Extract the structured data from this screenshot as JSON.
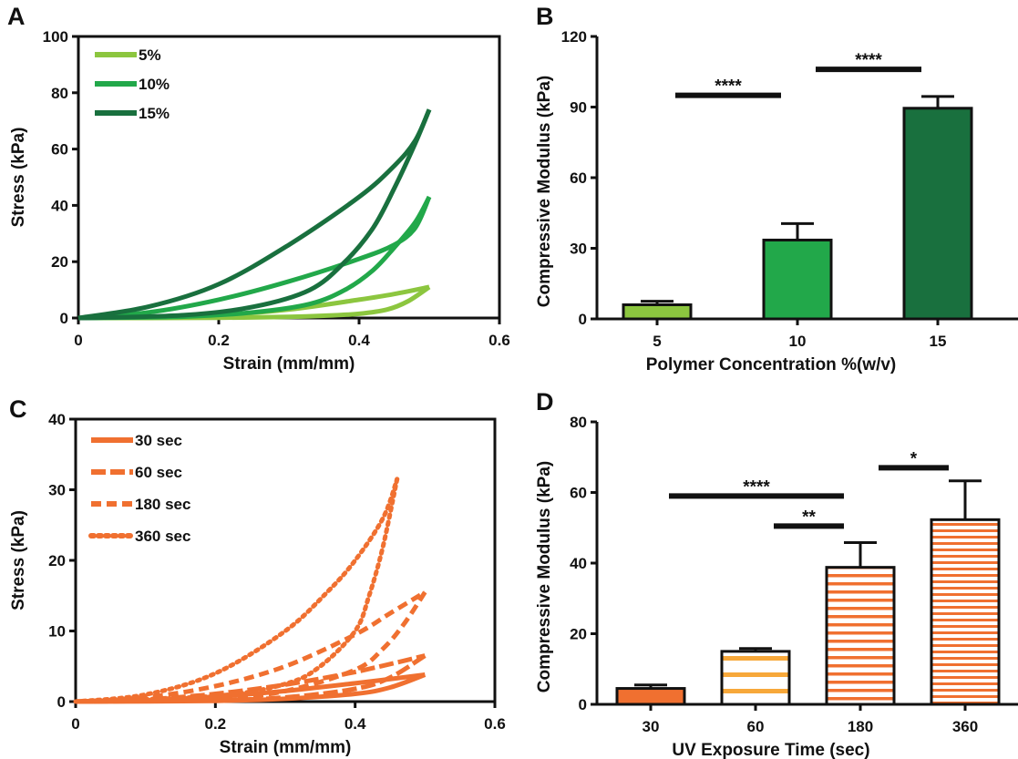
{
  "colors": {
    "green_5": "#8cc63f",
    "green_10": "#22a84a",
    "green_15": "#19703e",
    "orange": "#f07030",
    "orange_stripe": "#f7a83a",
    "axis": "#111111"
  },
  "chart_data": [
    {
      "panel": "A",
      "type": "line",
      "xlabel": "Strain (mm/mm)",
      "ylabel": "Stress (kPa)",
      "xlim": [
        0,
        0.6
      ],
      "ylim": [
        0,
        100
      ],
      "xticks": [
        "0",
        "0.2",
        "0.4",
        "0.6"
      ],
      "yticks": [
        "0",
        "20",
        "40",
        "60",
        "80",
        "100"
      ],
      "legend_position": "top-left",
      "series": [
        {
          "name": "5%",
          "color": "#8cc63f",
          "style": "solid",
          "peak_x": 0.5,
          "peak_y": 11,
          "loading": [
            [
              0,
              0
            ],
            [
              0.1,
              0.3
            ],
            [
              0.2,
              1
            ],
            [
              0.3,
              3
            ],
            [
              0.4,
              6.5
            ],
            [
              0.45,
              8.5
            ],
            [
              0.5,
              11
            ]
          ],
          "unloading": [
            [
              0.5,
              11
            ],
            [
              0.47,
              6
            ],
            [
              0.44,
              3
            ],
            [
              0.4,
              1.5
            ],
            [
              0.35,
              0.8
            ],
            [
              0.3,
              0.4
            ],
            [
              0.2,
              0.1
            ],
            [
              0.1,
              0
            ],
            [
              0,
              0
            ]
          ]
        },
        {
          "name": "10%",
          "color": "#22a84a",
          "style": "solid",
          "peak_x": 0.5,
          "peak_y": 43,
          "loading": [
            [
              0,
              0
            ],
            [
              0.1,
              2
            ],
            [
              0.2,
              6.5
            ],
            [
              0.3,
              13
            ],
            [
              0.4,
              21
            ],
            [
              0.45,
              26
            ],
            [
              0.48,
              32
            ],
            [
              0.5,
              43
            ]
          ],
          "unloading": [
            [
              0.5,
              43
            ],
            [
              0.48,
              34
            ],
            [
              0.45,
              25
            ],
            [
              0.42,
              17
            ],
            [
              0.38,
              10
            ],
            [
              0.33,
              5
            ],
            [
              0.25,
              2
            ],
            [
              0.15,
              0.5
            ],
            [
              0,
              0
            ]
          ]
        },
        {
          "name": "15%",
          "color": "#19703e",
          "style": "solid",
          "peak_x": 0.5,
          "peak_y": 74,
          "loading": [
            [
              0,
              0
            ],
            [
              0.1,
              4
            ],
            [
              0.2,
              12
            ],
            [
              0.3,
              26
            ],
            [
              0.4,
              43
            ],
            [
              0.45,
              54
            ],
            [
              0.48,
              63
            ],
            [
              0.5,
              74
            ]
          ],
          "unloading": [
            [
              0.5,
              74
            ],
            [
              0.48,
              62
            ],
            [
              0.45,
              46
            ],
            [
              0.42,
              32
            ],
            [
              0.38,
              20
            ],
            [
              0.33,
              10
            ],
            [
              0.25,
              4
            ],
            [
              0.15,
              1
            ],
            [
              0,
              0
            ]
          ]
        }
      ]
    },
    {
      "panel": "B",
      "type": "bar",
      "xlabel": "Polymer Concentration %(w/v)",
      "ylabel": "Compressive  Modulus (kPa)",
      "categories": [
        "5",
        "10",
        "15"
      ],
      "values": [
        6,
        33.5,
        89.5
      ],
      "errors": [
        1.5,
        7,
        5
      ],
      "colors": [
        "#8cc63f",
        "#22a84a",
        "#19703e"
      ],
      "ylim": [
        0,
        120
      ],
      "yticks": [
        "0",
        "30",
        "60",
        "90",
        "120"
      ],
      "significance": [
        {
          "from": 0,
          "to": 1,
          "label": "****",
          "y": 95
        },
        {
          "from": 1,
          "to": 2,
          "label": "****",
          "y": 106
        }
      ]
    },
    {
      "panel": "C",
      "type": "line",
      "xlabel": "Strain (mm/mm)",
      "ylabel": "Stress (kPa)",
      "xlim": [
        0,
        0.6
      ],
      "ylim": [
        0,
        40
      ],
      "xticks": [
        "0",
        "0.2",
        "0.4",
        "0.6"
      ],
      "yticks": [
        "0",
        "10",
        "20",
        "30",
        "40"
      ],
      "legend_position": "top-left",
      "series": [
        {
          "name": "30 sec",
          "color": "#f07030",
          "style": "solid",
          "peak_x": 0.5,
          "peak_y": 3.8,
          "loading": [
            [
              0,
              0
            ],
            [
              0.1,
              0.2
            ],
            [
              0.2,
              0.7
            ],
            [
              0.3,
              1.5
            ],
            [
              0.4,
              2.6
            ],
            [
              0.5,
              3.8
            ]
          ],
          "unloading": [
            [
              0.5,
              3.8
            ],
            [
              0.45,
              2
            ],
            [
              0.4,
              1.1
            ],
            [
              0.3,
              0.4
            ],
            [
              0.2,
              0.1
            ],
            [
              0,
              0
            ]
          ]
        },
        {
          "name": "60 sec",
          "color": "#f07030",
          "style": "longdash",
          "peak_x": 0.5,
          "peak_y": 6.5,
          "loading": [
            [
              0,
              0
            ],
            [
              0.1,
              0.3
            ],
            [
              0.2,
              1.1
            ],
            [
              0.3,
              2.4
            ],
            [
              0.4,
              4.2
            ],
            [
              0.5,
              6.5
            ]
          ],
          "unloading": [
            [
              0.5,
              6.5
            ],
            [
              0.45,
              3.4
            ],
            [
              0.4,
              1.8
            ],
            [
              0.3,
              0.6
            ],
            [
              0.2,
              0.2
            ],
            [
              0,
              0
            ]
          ]
        },
        {
          "name": "180 sec",
          "color": "#f07030",
          "style": "dash",
          "peak_x": 0.5,
          "peak_y": 15.5,
          "loading": [
            [
              0,
              0
            ],
            [
              0.1,
              0.6
            ],
            [
              0.2,
              2.2
            ],
            [
              0.3,
              5
            ],
            [
              0.4,
              9.5
            ],
            [
              0.45,
              12.5
            ],
            [
              0.5,
              15.5
            ]
          ],
          "unloading": [
            [
              0.5,
              15.5
            ],
            [
              0.47,
              11
            ],
            [
              0.44,
              7.5
            ],
            [
              0.4,
              4.5
            ],
            [
              0.3,
              1.5
            ],
            [
              0.2,
              0.4
            ],
            [
              0,
              0
            ]
          ]
        },
        {
          "name": "360 sec",
          "color": "#f07030",
          "style": "dot",
          "peak_x": 0.46,
          "peak_y": 31.5,
          "loading": [
            [
              0,
              0
            ],
            [
              0.1,
              1
            ],
            [
              0.2,
              4
            ],
            [
              0.3,
              10
            ],
            [
              0.36,
              15.5
            ],
            [
              0.4,
              20
            ],
            [
              0.44,
              26
            ],
            [
              0.46,
              31.5
            ]
          ],
          "unloading": [
            [
              0.46,
              31.5
            ],
            [
              0.44,
              22
            ],
            [
              0.42,
              15
            ],
            [
              0.4,
              10
            ],
            [
              0.35,
              5
            ],
            [
              0.3,
              2.5
            ],
            [
              0.2,
              0.8
            ],
            [
              0,
              0
            ]
          ]
        }
      ]
    },
    {
      "panel": "D",
      "type": "bar",
      "xlabel": "UV Exposure Time (sec)",
      "ylabel": "Compressive  Modulus (kPa)",
      "categories": [
        "30",
        "60",
        "180",
        "360"
      ],
      "values": [
        4.5,
        15,
        38.8,
        52.3
      ],
      "errors": [
        1,
        0.8,
        7,
        11
      ],
      "fill": [
        "solid",
        "wide-stripes",
        "fine-stripes",
        "finest-stripes"
      ],
      "ylim": [
        0,
        80
      ],
      "yticks": [
        "0",
        "20",
        "40",
        "60",
        "80"
      ],
      "significance": [
        {
          "from": 0,
          "to": 2,
          "label": "****",
          "y": 59
        },
        {
          "from": 1,
          "to": 2,
          "label": "**",
          "y": 50.5
        },
        {
          "from": 2,
          "to": 3,
          "label": "*",
          "y": 67
        }
      ]
    }
  ]
}
